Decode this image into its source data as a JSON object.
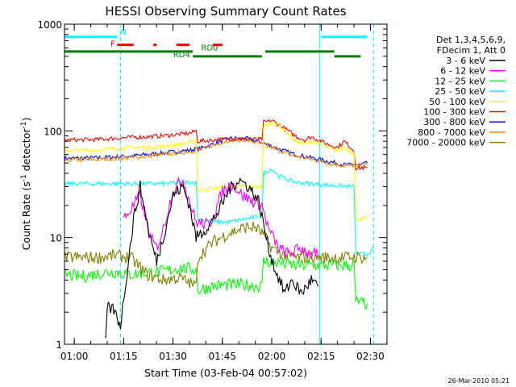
{
  "chart_data": {
    "type": "line",
    "title": "HESSI Observing Summary Count Rates",
    "xlabel": "Start Time (03-Feb-04 00:57:02)",
    "ylabel": "Count Rate (s",
    "ylabel_sup1": "-1",
    "ylabel_mid": " detector",
    "ylabel_sup2": "-1",
    "ylabel_end": ")",
    "yscale": "log",
    "xlim": [
      0,
      98
    ],
    "ylim": [
      1,
      1000
    ],
    "x_ticks": [
      {
        "value": 2.97,
        "label": "01:00"
      },
      {
        "value": 17.97,
        "label": "01:15"
      },
      {
        "value": 32.97,
        "label": "01:30"
      },
      {
        "value": 47.97,
        "label": "01:45"
      },
      {
        "value": 62.97,
        "label": "02:00"
      },
      {
        "value": 77.97,
        "label": "02:15"
      },
      {
        "value": 92.97,
        "label": "02:30"
      }
    ],
    "y_ticks": [
      {
        "value": 1,
        "label": "1"
      },
      {
        "value": 10,
        "label": "10"
      },
      {
        "value": 100,
        "label": "100"
      },
      {
        "value": 1000,
        "label": "1000"
      }
    ],
    "grid": false,
    "legend_position": "top-right",
    "legend_header": [
      "Det 1,3,4,5,6,9,",
      "FDecim 1, Att 0"
    ],
    "series": [
      {
        "name": "3 - 6 keV",
        "color": "#000000",
        "points": [
          [
            12.5,
            1
          ],
          [
            13,
            2.2
          ],
          [
            15,
            2.1
          ],
          [
            17,
            1.5
          ],
          [
            21,
            15
          ],
          [
            23,
            30
          ],
          [
            26,
            10
          ],
          [
            28,
            6
          ],
          [
            30,
            10
          ],
          [
            33,
            25
          ],
          [
            36,
            30
          ],
          [
            38,
            20
          ],
          [
            40,
            10
          ],
          [
            44,
            13
          ],
          [
            47,
            18
          ],
          [
            50,
            28
          ],
          [
            53,
            35
          ],
          [
            56,
            30
          ],
          [
            59,
            22
          ],
          [
            62,
            8
          ],
          [
            64,
            5
          ],
          [
            67,
            3
          ],
          [
            69,
            4
          ],
          [
            72,
            3
          ],
          [
            75,
            4
          ],
          [
            77,
            3.5
          ]
        ]
      },
      {
        "name": "6 - 12 keV",
        "color": "#ff00ff",
        "points": [
          [
            18,
            15
          ],
          [
            20,
            18
          ],
          [
            23,
            25
          ],
          [
            26,
            10
          ],
          [
            28,
            8
          ],
          [
            30,
            12
          ],
          [
            33,
            28
          ],
          [
            36,
            35
          ],
          [
            38,
            22
          ],
          [
            40,
            14
          ],
          [
            44,
            13
          ],
          [
            48,
            27
          ],
          [
            51,
            32
          ],
          [
            54,
            25
          ],
          [
            57,
            22
          ],
          [
            60,
            20
          ],
          [
            62,
            12
          ],
          [
            65,
            8
          ],
          [
            68,
            7
          ],
          [
            72,
            8
          ],
          [
            75,
            7
          ],
          [
            77,
            7
          ]
        ]
      },
      {
        "name": "12 - 25 keV",
        "color": "#00ff00",
        "points": [
          [
            0,
            4.5
          ],
          [
            5,
            4.3
          ],
          [
            10,
            4.6
          ],
          [
            15,
            4.8
          ],
          [
            20,
            4.5
          ],
          [
            25,
            4.7
          ],
          [
            30,
            4.8
          ],
          [
            35,
            5.2
          ],
          [
            40,
            5
          ],
          [
            40.5,
            3.2
          ],
          [
            45,
            3.5
          ],
          [
            50,
            3.6
          ],
          [
            55,
            3.6
          ],
          [
            60,
            3.5
          ],
          [
            60.5,
            6
          ],
          [
            65,
            5.8
          ],
          [
            70,
            5.5
          ],
          [
            75,
            5.5
          ],
          [
            78,
            5.5
          ],
          [
            88,
            5.5
          ],
          [
            88.5,
            2.5
          ],
          [
            92,
            2.4
          ]
        ]
      },
      {
        "name": "25 - 50 keV",
        "color": "#00ffff",
        "points": [
          [
            0,
            32
          ],
          [
            10,
            32
          ],
          [
            20,
            32
          ],
          [
            30,
            32
          ],
          [
            37,
            33
          ],
          [
            40,
            33
          ],
          [
            40.5,
            15
          ],
          [
            45,
            14
          ],
          [
            50,
            14
          ],
          [
            55,
            15
          ],
          [
            60,
            16
          ],
          [
            60.5,
            40
          ],
          [
            63,
            44
          ],
          [
            65,
            38
          ],
          [
            70,
            33
          ],
          [
            75,
            32
          ],
          [
            80,
            31
          ],
          [
            88,
            30
          ],
          [
            88.5,
            7
          ],
          [
            92,
            7
          ],
          [
            94,
            8
          ]
        ]
      },
      {
        "name": "50 - 100 keV",
        "color": "#ffff00",
        "points": [
          [
            0,
            65
          ],
          [
            10,
            66
          ],
          [
            15,
            68
          ],
          [
            20,
            70
          ],
          [
            25,
            70
          ],
          [
            30,
            72
          ],
          [
            35,
            75
          ],
          [
            38,
            78
          ],
          [
            40,
            82
          ],
          [
            40.5,
            28
          ],
          [
            45,
            29
          ],
          [
            50,
            30
          ],
          [
            55,
            30
          ],
          [
            60,
            30
          ],
          [
            60.5,
            110
          ],
          [
            63,
            120
          ],
          [
            65,
            115
          ],
          [
            68,
            95
          ],
          [
            70,
            80
          ],
          [
            73,
            75
          ],
          [
            75,
            80
          ],
          [
            78,
            75
          ],
          [
            80,
            70
          ],
          [
            82,
            65
          ],
          [
            85,
            70
          ],
          [
            88,
            62
          ],
          [
            88.5,
            15
          ],
          [
            92,
            15
          ]
        ]
      },
      {
        "name": "100 - 300 keV",
        "color": "#ff0000",
        "points": [
          [
            0,
            82
          ],
          [
            10,
            83
          ],
          [
            15,
            85
          ],
          [
            20,
            87
          ],
          [
            25,
            88
          ],
          [
            30,
            90
          ],
          [
            35,
            93
          ],
          [
            38,
            95
          ],
          [
            40,
            100
          ],
          [
            40.5,
            80
          ],
          [
            45,
            82
          ],
          [
            50,
            84
          ],
          [
            55,
            84
          ],
          [
            60,
            83
          ],
          [
            60.5,
            120
          ],
          [
            63,
            125
          ],
          [
            65,
            115
          ],
          [
            68,
            100
          ],
          [
            70,
            90
          ],
          [
            73,
            82
          ],
          [
            75,
            88
          ],
          [
            78,
            80
          ],
          [
            80,
            75
          ],
          [
            83,
            70
          ],
          [
            85,
            80
          ],
          [
            88,
            65
          ],
          [
            88.5,
            45
          ],
          [
            92,
            45
          ]
        ]
      },
      {
        "name": "300 - 800 keV",
        "color": "#0000ff",
        "points": [
          [
            0,
            55
          ],
          [
            10,
            56
          ],
          [
            20,
            58
          ],
          [
            30,
            62
          ],
          [
            38,
            66
          ],
          [
            41,
            68
          ],
          [
            45,
            75
          ],
          [
            50,
            85
          ],
          [
            55,
            85
          ],
          [
            60,
            78
          ],
          [
            65,
            68
          ],
          [
            70,
            60
          ],
          [
            75,
            56
          ],
          [
            80,
            52
          ],
          [
            85,
            48
          ],
          [
            90,
            48
          ],
          [
            92,
            50
          ]
        ]
      },
      {
        "name": "800 - 7000 keV",
        "color": "#ff8c00",
        "points": [
          [
            0,
            53
          ],
          [
            10,
            54
          ],
          [
            20,
            56
          ],
          [
            30,
            60
          ],
          [
            38,
            64
          ],
          [
            41,
            66
          ],
          [
            45,
            73
          ],
          [
            50,
            82
          ],
          [
            55,
            82
          ],
          [
            60,
            75
          ],
          [
            65,
            66
          ],
          [
            70,
            58
          ],
          [
            75,
            54
          ],
          [
            80,
            50
          ],
          [
            85,
            47
          ],
          [
            90,
            47
          ],
          [
            92,
            48
          ]
        ]
      },
      {
        "name": "7000 - 20000 keV",
        "color": "#808000",
        "points": [
          [
            0,
            6.5
          ],
          [
            10,
            6.5
          ],
          [
            15,
            6.8
          ],
          [
            20,
            6.5
          ],
          [
            25,
            4.5
          ],
          [
            30,
            4
          ],
          [
            35,
            4.2
          ],
          [
            40,
            3.5
          ],
          [
            40.5,
            6.5
          ],
          [
            45,
            9
          ],
          [
            50,
            11
          ],
          [
            55,
            12.5
          ],
          [
            58,
            12.5
          ],
          [
            60,
            11
          ],
          [
            63,
            8
          ],
          [
            66,
            7
          ],
          [
            70,
            6.5
          ],
          [
            75,
            6.6
          ],
          [
            80,
            6.5
          ],
          [
            85,
            6.5
          ],
          [
            88,
            6.6
          ],
          [
            92,
            6.5
          ]
        ]
      }
    ],
    "annotations": [
      {
        "label": "N",
        "x": 17,
        "y": 800,
        "color": "#00ffff"
      },
      {
        "label": "F",
        "x": 14,
        "y": 620,
        "color": "#ff0000"
      },
      {
        "label": "RD0",
        "x": 41.5,
        "y": 570,
        "color": "#008000"
      },
      {
        "label": "RD4",
        "x": 33,
        "y": 490,
        "color": "#008000"
      }
    ],
    "state_bars": [
      {
        "name": "N",
        "color": "#00ffff",
        "y": 760,
        "segments": [
          [
            0,
            16
          ],
          [
            78,
            92
          ]
        ]
      },
      {
        "name": "F",
        "color": "#ff0000",
        "y": 640,
        "segments": [
          [
            16,
            21
          ],
          [
            27,
            28
          ],
          [
            34,
            38
          ],
          [
            45,
            48
          ]
        ]
      },
      {
        "name": "RD0",
        "color": "#008000",
        "y": 555,
        "segments": [
          [
            0,
            39
          ],
          [
            61,
            82
          ]
        ]
      },
      {
        "name": "RD4",
        "color": "#008000",
        "y": 500,
        "segments": [
          [
            39,
            60
          ],
          [
            82,
            90
          ]
        ]
      }
    ],
    "vlines": [
      {
        "x": 0,
        "color": "#00ffff",
        "style": "solid"
      },
      {
        "x": 17,
        "color": "#00ffff",
        "style": "dashed"
      },
      {
        "x": 77.5,
        "color": "#00ffff",
        "style": "solid"
      },
      {
        "x": 94,
        "color": "#00ffff",
        "style": "dashed"
      }
    ],
    "timestamp": "26-Mar-2010 05:21"
  }
}
